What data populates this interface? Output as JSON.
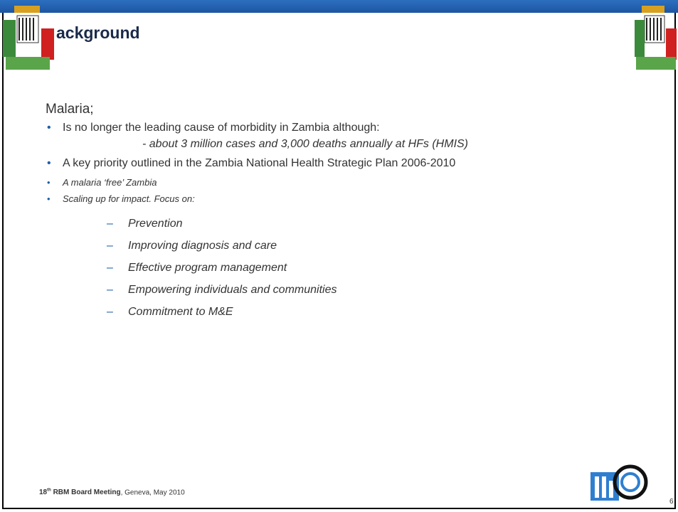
{
  "header": {
    "title": "ackground"
  },
  "body": {
    "intro": "Malaria;",
    "bullets": [
      "Is no longer the leading cause of morbidity in Zambia although:",
      "A key priority outlined in the Zambia National Health Strategic Plan 2006-2010",
      "A malaria ‘free’ Zambia",
      "Scaling up for impact. Focus on:"
    ],
    "sub_note": "- about 3 million cases and 3,000 deaths annually at HFs (HMIS)",
    "focus_items": [
      "Prevention",
      "Improving diagnosis and care",
      "Effective program management",
      "Empowering individuals and communities",
      "Commitment to M&E"
    ]
  },
  "footer": {
    "number": "18",
    "ordinal": "th",
    "meeting": "RBM Board Meeting",
    "rest": ", Geneva, May 2010",
    "page": "6"
  }
}
